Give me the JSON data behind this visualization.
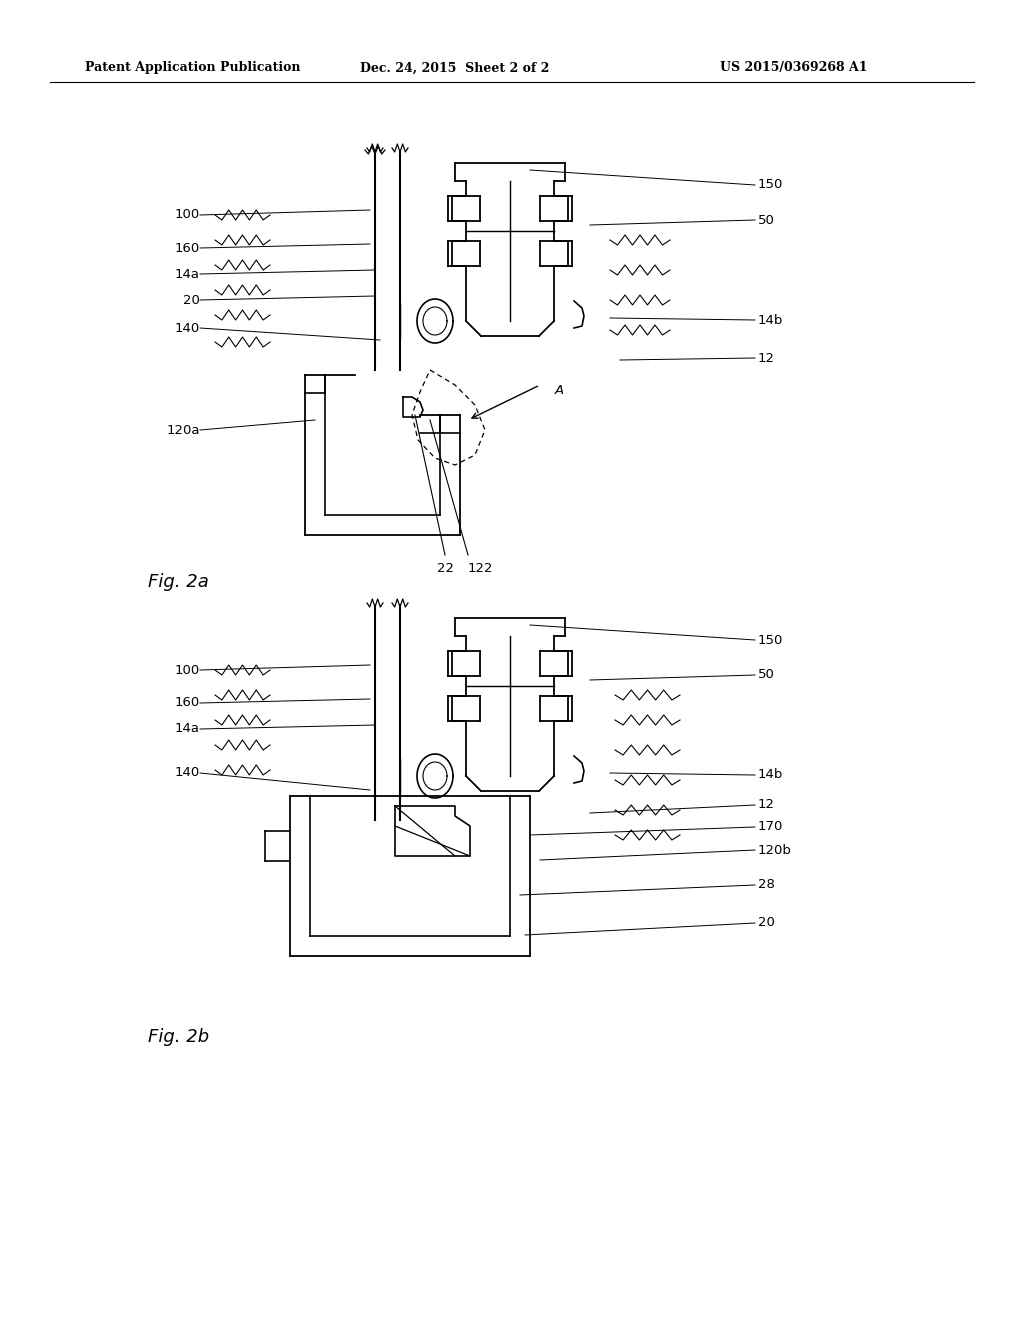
{
  "bg_color": "#ffffff",
  "line_color": "#000000",
  "header_text": "Patent Application Publication",
  "header_date": "Dec. 24, 2015  Sheet 2 of 2",
  "header_patent": "US 2015/0369268 A1",
  "fig2a_label": "Fig. 2a",
  "fig2b_label": "Fig. 2b"
}
